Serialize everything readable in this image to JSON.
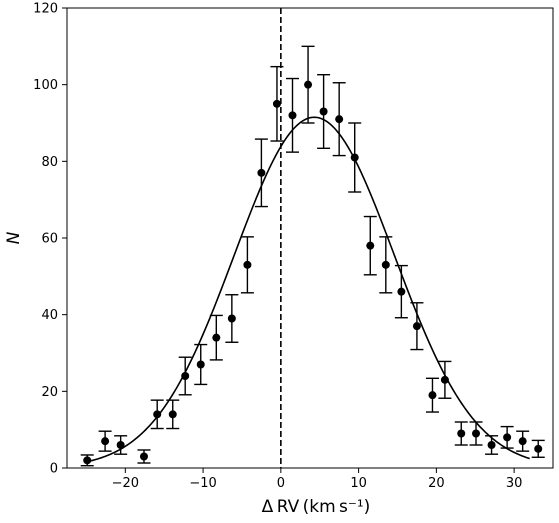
{
  "chart_data": {
    "type": "scatter",
    "title": "",
    "xlabel": "Δ RV (km s⁻¹)",
    "ylabel": "N",
    "xlim": [
      -27.5,
      35
    ],
    "ylim": [
      0,
      120
    ],
    "x_ticks": [
      -20,
      -10,
      0,
      10,
      20,
      30
    ],
    "x_tick_labels": [
      "−20",
      "−10",
      "0",
      "10",
      "20",
      "30"
    ],
    "y_ticks": [
      0,
      20,
      40,
      60,
      80,
      100,
      120
    ],
    "y_tick_labels": [
      "0",
      "20",
      "40",
      "60",
      "80",
      "100",
      "120"
    ],
    "grid": false,
    "reference_line": {
      "x": 0,
      "style": "dashed"
    },
    "series": [
      {
        "kind": "points_with_errorbars",
        "x": [
          -24.9,
          -22.6,
          -20.6,
          -17.6,
          -15.9,
          -13.9,
          -12.3,
          -10.3,
          -8.3,
          -6.3,
          -4.3,
          -2.5,
          -0.5,
          1.5,
          3.5,
          5.5,
          7.5,
          9.5,
          11.5,
          13.5,
          15.5,
          17.5,
          19.5,
          21.1,
          23.2,
          25.1,
          27.1,
          29.1,
          31.1,
          33.1
        ],
        "y": [
          2,
          7,
          6,
          3,
          14,
          14,
          24,
          27,
          34,
          39,
          53,
          77,
          95,
          92,
          100,
          93,
          91,
          81,
          58,
          53,
          46,
          37,
          19,
          23,
          9,
          9,
          6,
          8,
          7,
          5
        ],
        "yerr": [
          1.4,
          2.6,
          2.4,
          1.7,
          3.7,
          3.7,
          4.9,
          5.2,
          5.8,
          6.2,
          7.3,
          8.8,
          9.7,
          9.6,
          10.0,
          9.6,
          9.5,
          9.0,
          7.6,
          7.3,
          6.8,
          6.1,
          4.4,
          4.8,
          3.0,
          3.0,
          2.4,
          2.8,
          2.6,
          2.2
        ]
      },
      {
        "kind": "fit_curve",
        "function": "gaussian",
        "amplitude": 91.5,
        "mean": 4.3,
        "sigma": 10.3,
        "x_range": [
          -25,
          32
        ]
      }
    ]
  }
}
